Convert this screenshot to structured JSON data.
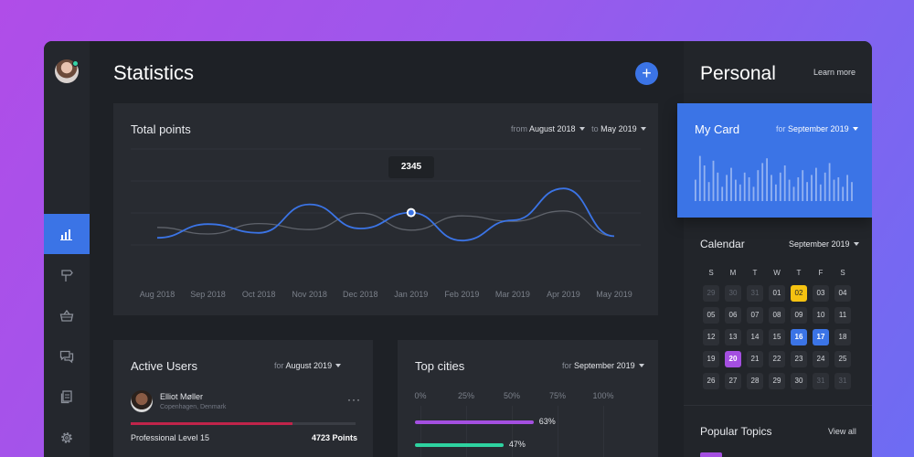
{
  "main": {
    "title": "Statistics",
    "add_label": "+"
  },
  "nav": {
    "items": [
      {
        "icon": "bar-chart-icon",
        "active": true
      },
      {
        "icon": "signpost-icon",
        "active": false
      },
      {
        "icon": "basket-icon",
        "active": false
      },
      {
        "icon": "chat-icon",
        "active": false
      },
      {
        "icon": "documents-icon",
        "active": false
      },
      {
        "icon": "gear-icon",
        "active": false
      }
    ]
  },
  "total_points": {
    "title": "Total points",
    "from_label": "from",
    "from_value": "August 2018",
    "to_label": "to",
    "to_value": "May 2019",
    "tooltip_value": "2345"
  },
  "chart_data": {
    "type": "line",
    "title": "Total points",
    "x": [
      "Aug 2018",
      "Sep 2018",
      "Oct 2018",
      "Nov 2018",
      "Dec 2018",
      "Jan 2019",
      "Feb 2019",
      "Mar 2019",
      "Apr 2019",
      "May 2019"
    ],
    "series": [
      {
        "values": [
          18,
          43,
          27,
          79,
          35,
          64,
          13,
          50,
          108,
          21
        ]
      },
      {
        "values": [
          37,
          25,
          44,
          33,
          63,
          32,
          58,
          48,
          67,
          21
        ]
      }
    ],
    "highlight": {
      "index": 5,
      "label": "2345"
    },
    "colors": [
      "#3b74e6",
      "#5f636b"
    ],
    "grid": true
  },
  "active_users": {
    "title": "Active Users",
    "for_label": "for",
    "for_value": "August 2019",
    "user_name": "Elliot Møller",
    "user_location": "Copenhagen, Denmark",
    "more_label": "···",
    "progress": 0.72,
    "level": "Professional Level 15",
    "points": "4723 Points"
  },
  "top_cities": {
    "title": "Top cities",
    "for_label": "for",
    "for_value": "September 2019",
    "ticks": [
      "0%",
      "25%",
      "50%",
      "75%",
      "100%"
    ],
    "bars": [
      {
        "value": 63,
        "label": "63%",
        "color": "#a44fe0"
      },
      {
        "value": 47,
        "label": "47%",
        "color": "#2ed3a0"
      }
    ]
  },
  "personal": {
    "title": "Personal",
    "learn_more": "Learn more"
  },
  "my_card": {
    "title": "My Card",
    "for_label": "for",
    "for_value": "September 2019",
    "bars": [
      0.45,
      0.95,
      0.75,
      0.4,
      0.85,
      0.6,
      0.3,
      0.55,
      0.7,
      0.45,
      0.35,
      0.6,
      0.5,
      0.3,
      0.65,
      0.8,
      0.9,
      0.55,
      0.35,
      0.6,
      0.75,
      0.45,
      0.3,
      0.5,
      0.65,
      0.4,
      0.55,
      0.7,
      0.35,
      0.6,
      0.8,
      0.45,
      0.5,
      0.3,
      0.55,
      0.4
    ]
  },
  "calendar": {
    "title": "Calendar",
    "month": "September 2019",
    "dow": [
      "S",
      "M",
      "T",
      "W",
      "T",
      "F",
      "S"
    ],
    "weeks": [
      [
        {
          "d": "29",
          "m": true
        },
        {
          "d": "30",
          "m": true
        },
        {
          "d": "31",
          "m": true
        },
        {
          "d": "01"
        },
        {
          "d": "02",
          "hl": "yellow"
        },
        {
          "d": "03"
        },
        {
          "d": "04"
        }
      ],
      [
        {
          "d": "05"
        },
        {
          "d": "06"
        },
        {
          "d": "07"
        },
        {
          "d": "08"
        },
        {
          "d": "09"
        },
        {
          "d": "10"
        },
        {
          "d": "11"
        }
      ],
      [
        {
          "d": "12"
        },
        {
          "d": "13"
        },
        {
          "d": "14"
        },
        {
          "d": "15"
        },
        {
          "d": "16",
          "hl": "blue"
        },
        {
          "d": "17",
          "hl": "blue"
        },
        {
          "d": "18"
        }
      ],
      [
        {
          "d": "19"
        },
        {
          "d": "20",
          "hl": "purple"
        },
        {
          "d": "21"
        },
        {
          "d": "22"
        },
        {
          "d": "23"
        },
        {
          "d": "24"
        },
        {
          "d": "25"
        }
      ],
      [
        {
          "d": "26"
        },
        {
          "d": "27"
        },
        {
          "d": "28"
        },
        {
          "d": "29"
        },
        {
          "d": "30"
        },
        {
          "d": "31",
          "m": true
        },
        {
          "d": "31",
          "m": true
        }
      ]
    ]
  },
  "popular_topics": {
    "title": "Popular Topics",
    "view_all": "View all"
  }
}
